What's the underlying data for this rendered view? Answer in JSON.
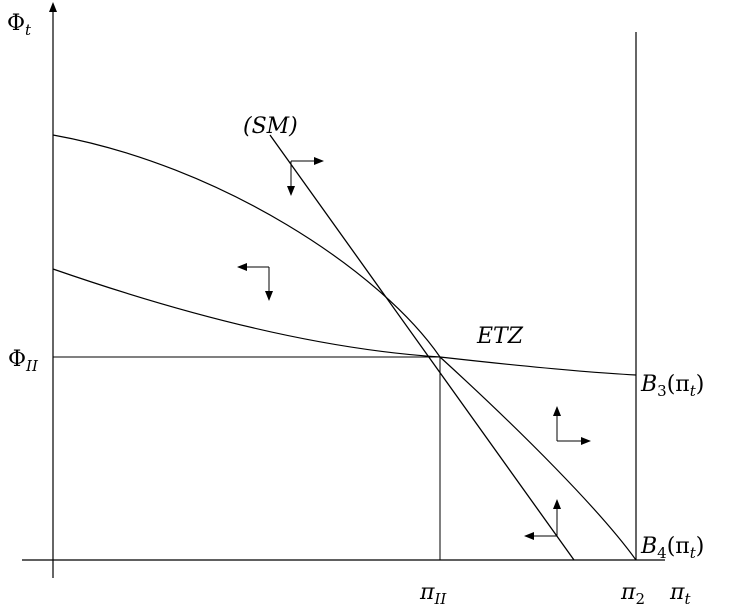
{
  "labels": {
    "y_axis": {
      "base": "Φ",
      "sub": "t"
    },
    "x_axis": {
      "base": "π",
      "sub": "t"
    },
    "phi_ii": {
      "base": "Φ",
      "sub": "II"
    },
    "pi_ii": {
      "base": "π",
      "sub": "II"
    },
    "pi_2": {
      "base": "π",
      "sub": "2"
    },
    "sm": "(SM)",
    "etz": "ETZ",
    "b3": {
      "base": "B",
      "sub": "3",
      "arg": "(π",
      "arg_sub": "t",
      "close": ")"
    },
    "b4": {
      "base": "B",
      "sub": "4",
      "arg": "(π",
      "arg_sub": "t",
      "close": ")"
    }
  },
  "colors": {
    "ink": "#000000",
    "background": "#ffffff"
  }
}
